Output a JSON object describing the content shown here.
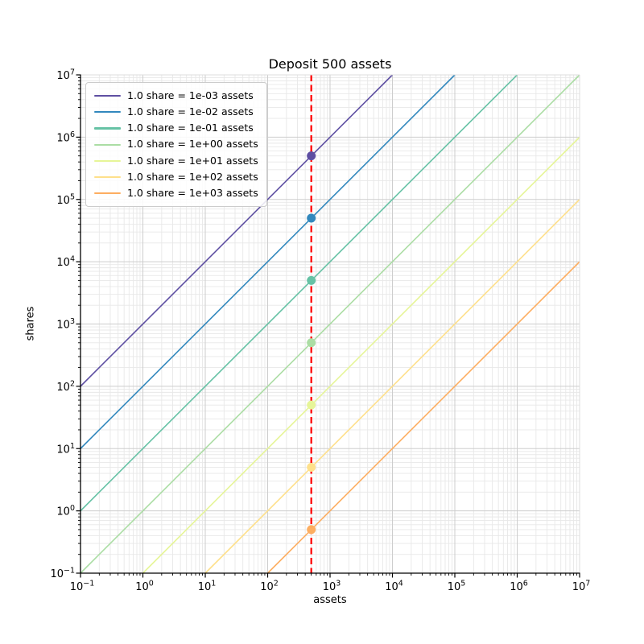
{
  "chart_data": {
    "type": "line",
    "title": "Deposit 500 assets",
    "xlabel": "assets",
    "ylabel": "shares",
    "x_scale": "log",
    "y_scale": "log",
    "xlim": [
      0.1,
      10000000
    ],
    "ylim": [
      0.1,
      10000000
    ],
    "x_tick_exponents": [
      -1,
      0,
      1,
      2,
      3,
      4,
      5,
      6,
      7
    ],
    "y_tick_exponents": [
      -1,
      0,
      1,
      2,
      3,
      4,
      5,
      6,
      7
    ],
    "grid": "major and minor gridlines on",
    "legend_position": "upper left",
    "deposit_assets": 500,
    "marker_line": {
      "x": 500,
      "color": "#ff0000",
      "style": "dashed",
      "orientation": "vertical"
    },
    "series": [
      {
        "label": "1.0 share = 1e-03 assets",
        "assets_per_share": 0.001,
        "color": "#5e4fa2",
        "point": {
          "x": 500,
          "y": 500000
        }
      },
      {
        "label": "1.0 share = 1e-02 assets",
        "assets_per_share": 0.01,
        "color": "#3288bd",
        "point": {
          "x": 500,
          "y": 50000
        }
      },
      {
        "label": "1.0 share = 1e-01 assets",
        "assets_per_share": 0.1,
        "color": "#66c2a5",
        "point": {
          "x": 500,
          "y": 5000
        }
      },
      {
        "label": "1.0 share = 1e+00 assets",
        "assets_per_share": 1,
        "color": "#abdda4",
        "point": {
          "x": 500,
          "y": 500
        }
      },
      {
        "label": "1.0 share = 1e+01 assets",
        "assets_per_share": 10,
        "color": "#e6f598",
        "point": {
          "x": 500,
          "y": 50
        }
      },
      {
        "label": "1.0 share = 1e+02 assets",
        "assets_per_share": 100,
        "color": "#fee08b",
        "point": {
          "x": 500,
          "y": 5
        }
      },
      {
        "label": "1.0 share = 1e+03 assets",
        "assets_per_share": 1000,
        "color": "#fdae61",
        "point": {
          "x": 500,
          "y": 0.5
        }
      }
    ],
    "colors": {
      "major_grid": "#cdcdcd",
      "minor_grid": "#e8e8e8",
      "spine": "#000000",
      "edge_spine": "#dcdcdc"
    }
  }
}
